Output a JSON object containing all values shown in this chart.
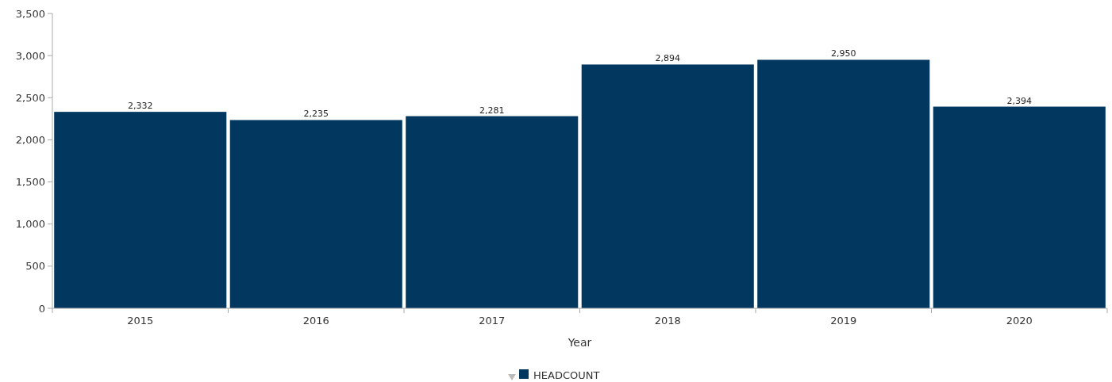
{
  "chart_data": {
    "type": "bar",
    "xlabel": "Year",
    "categories": [
      "2015",
      "2016",
      "2017",
      "2018",
      "2019",
      "2020"
    ],
    "series": [
      {
        "name": "HEADCOUNT",
        "color": "#02375f",
        "values": [
          2332,
          2235,
          2281,
          2894,
          2950,
          2394
        ],
        "value_labels": [
          "2,332",
          "2,235",
          "2,281",
          "2,894",
          "2,950",
          "2,394"
        ]
      }
    ],
    "ylim": [
      0,
      3500
    ],
    "yticks": [
      0,
      500,
      {
        "value": 1000,
        "label": "1,000"
      },
      {
        "value": 1500,
        "label": "1,500"
      },
      {
        "value": 2000,
        "label": "2,000"
      },
      {
        "value": 2500,
        "label": "2,500"
      },
      {
        "value": 3000,
        "label": "3,000"
      },
      {
        "value": 3500,
        "label": "3,500"
      }
    ],
    "legend": "bottom",
    "grid": false
  }
}
